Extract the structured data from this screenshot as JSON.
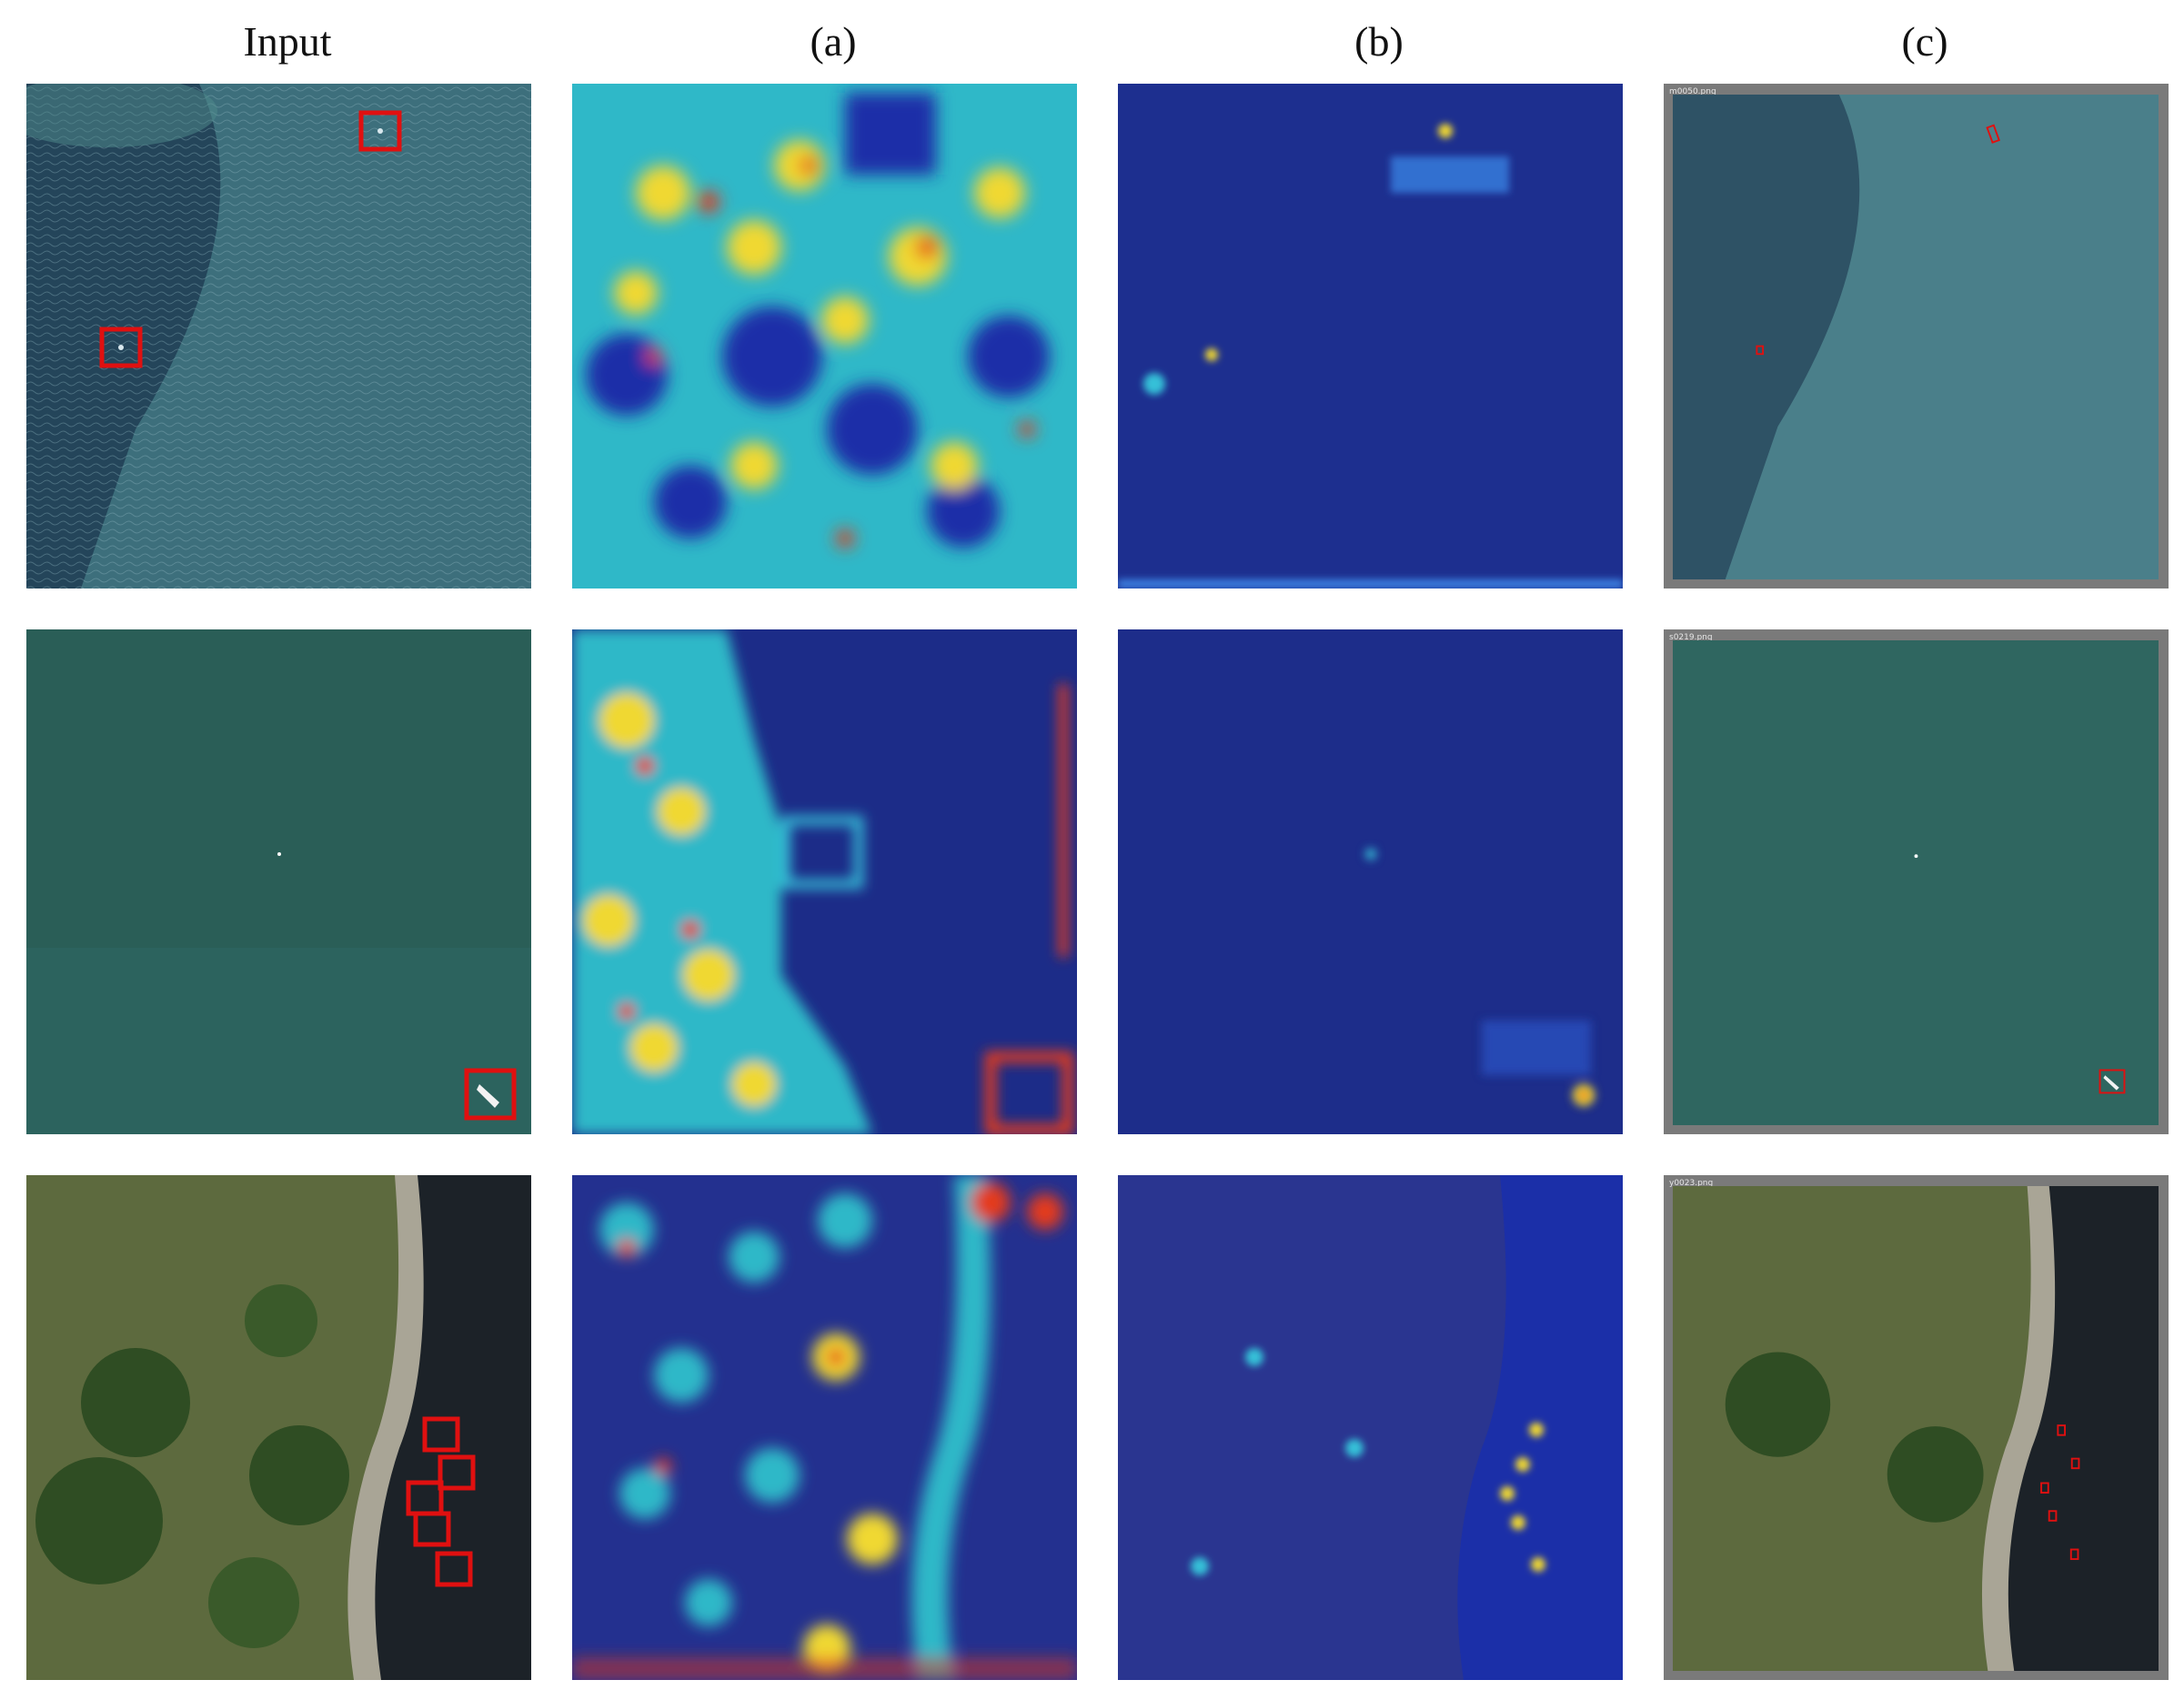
{
  "columns": [
    {
      "label": "Input"
    },
    {
      "label": "(a)"
    },
    {
      "label": "(b)"
    },
    {
      "label": "(c)"
    }
  ],
  "rows": [
    {
      "scene": "open water with two small ships",
      "filename": "m0050.png",
      "detections": 2
    },
    {
      "scene": "green sea with one boat",
      "filename": "s0219.png",
      "detections": 1
    },
    {
      "scene": "forested coastline with five boats",
      "filename": "y0023.png",
      "detections": 5
    }
  ],
  "colors": {
    "box": "#e01010",
    "heat_low": "#1a2a9a",
    "heat_mid": "#2fd0c8",
    "heat_high": "#e43a1a",
    "heat_warm": "#f0d830"
  }
}
